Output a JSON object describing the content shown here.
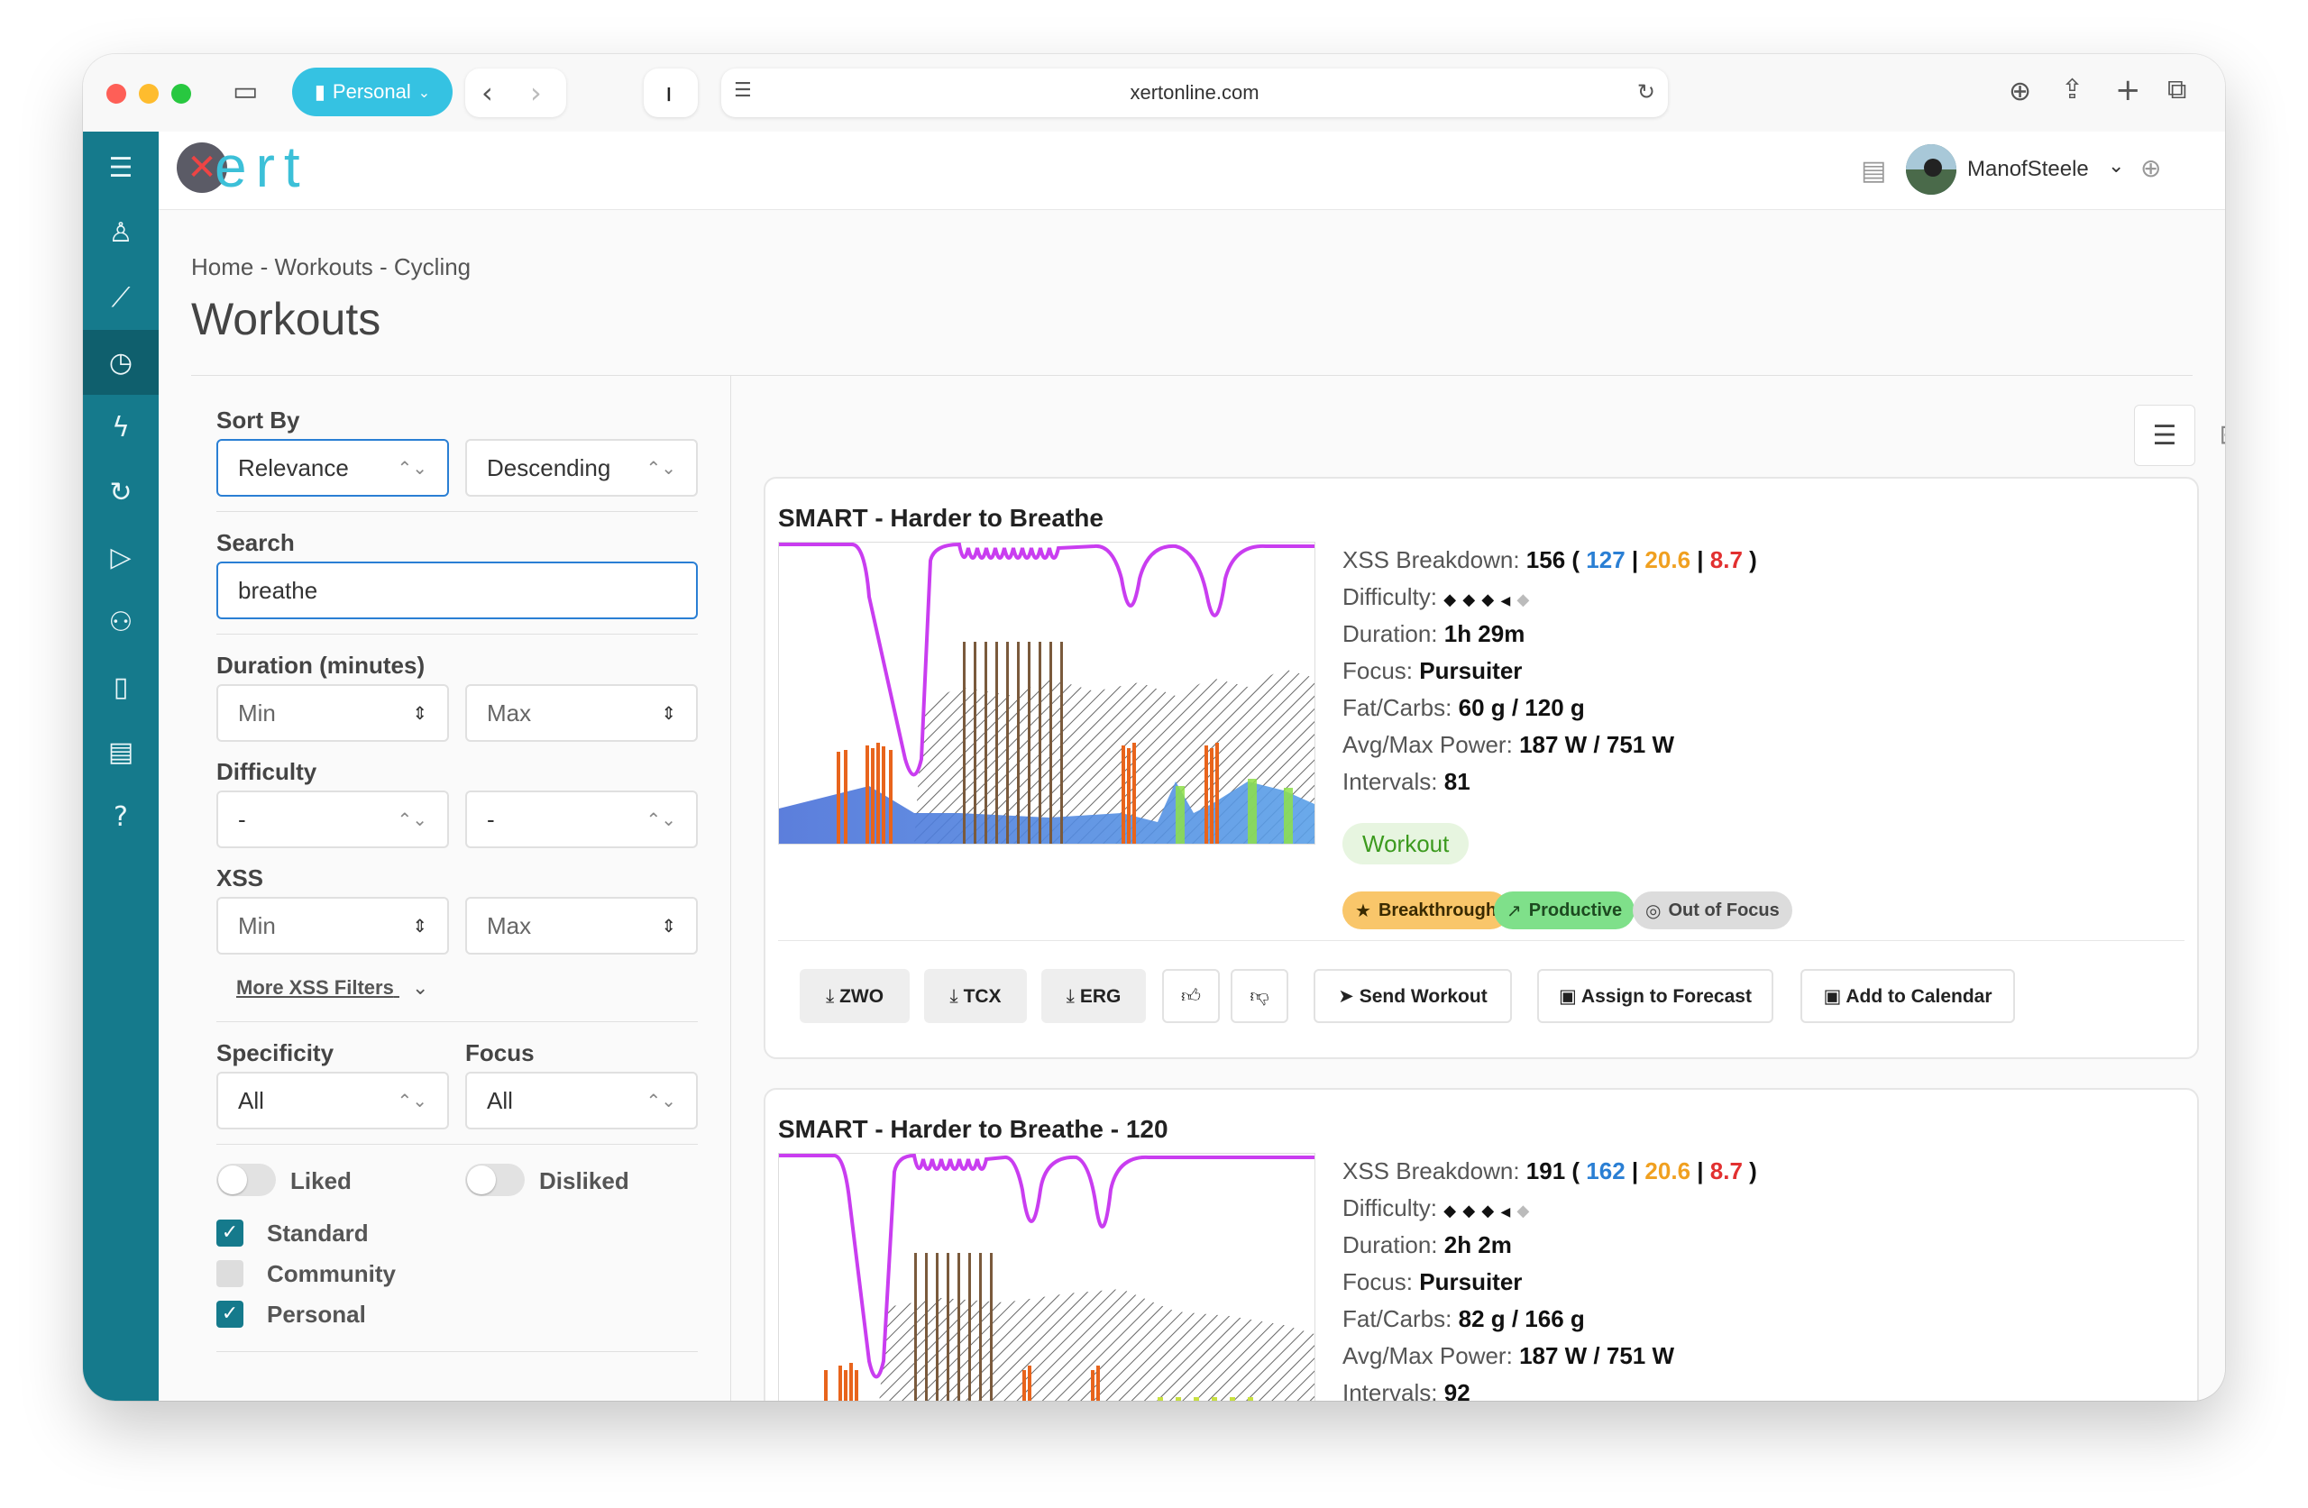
{
  "browser": {
    "profile_label": "Personal",
    "url": "xertonline.com"
  },
  "app": {
    "logo_text": "ert",
    "username": "ManofSteele"
  },
  "breadcrumb": "Home - Workouts - Cycling",
  "page_title": "Workouts",
  "filters": {
    "sort_by_label": "Sort By",
    "sort_field": "Relevance",
    "sort_order": "Descending",
    "search_label": "Search",
    "search_value": "breathe",
    "duration_label": "Duration (minutes)",
    "duration_min_placeholder": "Min",
    "duration_max_placeholder": "Max",
    "difficulty_label": "Difficulty",
    "difficulty_min": "-",
    "difficulty_max": "-",
    "xss_label": "XSS",
    "xss_min_placeholder": "Min",
    "xss_max_placeholder": "Max",
    "more_xss_filters": "More XSS Filters",
    "specificity_label": "Specificity",
    "specificity_value": "All",
    "focus_label": "Focus",
    "focus_value": "All",
    "liked_label": "Liked",
    "disliked_label": "Disliked",
    "sources": [
      {
        "label": "Standard",
        "checked": true
      },
      {
        "label": "Community",
        "checked": false
      },
      {
        "label": "Personal",
        "checked": true
      }
    ]
  },
  "workouts": [
    {
      "title": "SMART - Harder to Breathe",
      "xss_label": "XSS Breakdown:",
      "xss_total": "156",
      "xss_low": "127",
      "xss_high": "20.6",
      "xss_peak": "8.7",
      "difficulty_label": "Difficulty:",
      "difficulty_level": 3.5,
      "duration_label": "Duration:",
      "duration": "1h 29m",
      "focus_label": "Focus:",
      "focus": "Pursuiter",
      "fatcarbs_label": "Fat/Carbs:",
      "fatcarbs": "60 g / 120 g",
      "power_label": "Avg/Max Power:",
      "power": "187 W / 751 W",
      "intervals_label": "Intervals:",
      "intervals": "81",
      "type_tag": "Workout",
      "chips": [
        "Breakthrough",
        "Productive",
        "Out of Focus"
      ],
      "actions": {
        "zwo": "ZWO",
        "tcx": "TCX",
        "erg": "ERG",
        "send": "Send Workout",
        "assign": "Assign to Forecast",
        "calendar": "Add to Calendar"
      }
    },
    {
      "title": "SMART - Harder to Breathe - 120",
      "xss_label": "XSS Breakdown:",
      "xss_total": "191",
      "xss_low": "162",
      "xss_high": "20.6",
      "xss_peak": "8.7",
      "difficulty_label": "Difficulty:",
      "difficulty_level": 3.5,
      "duration_label": "Duration:",
      "duration": "2h 2m",
      "focus_label": "Focus:",
      "focus": "Pursuiter",
      "fatcarbs_label": "Fat/Carbs:",
      "fatcarbs": "82 g / 166 g",
      "power_label": "Avg/Max Power:",
      "power": "187 W / 751 W",
      "intervals_label": "Intervals:",
      "intervals": "92"
    }
  ],
  "colors": {
    "sidebar": "#157a8c",
    "accent": "#35c2e2",
    "xss_low": "#2a7fd4",
    "xss_high": "#f0a020",
    "xss_peak": "#e23030",
    "mpa_line": "#c93df0"
  }
}
